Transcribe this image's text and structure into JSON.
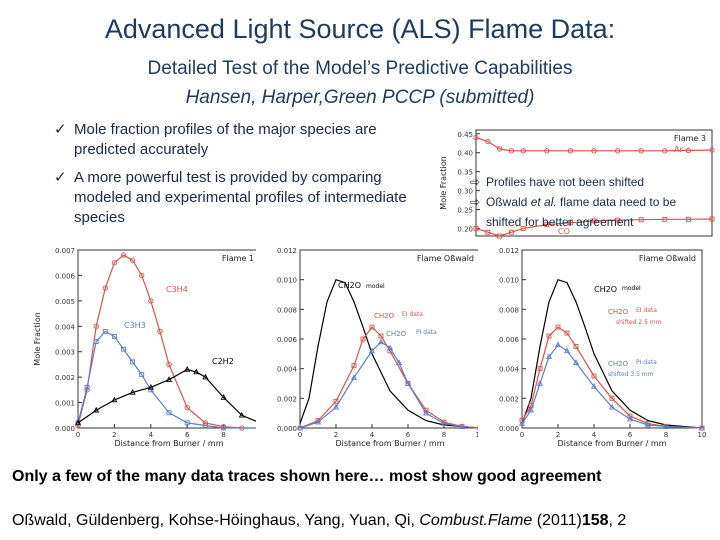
{
  "slide": {
    "title": "Advanced Light Source (ALS) Flame Data:",
    "subtitle": "Detailed Test of the Model’s Predictive Capabilities",
    "authors": "Hansen, Harper,Green PCCP (submitted)",
    "bullets": [
      "Mole fraction profiles of the major species are predicted accurately",
      "A more powerful test is provided by comparing modeled and experimental profiles of intermediate species"
    ],
    "note": {
      "line1": "Profiles have not been shifted",
      "line2_pre": "Oßwald ",
      "line2_italic": "et al.",
      "line2_post": " flame data need to be",
      "line3": "shifted for better agreement"
    },
    "summary": "Only a few of the many data traces shown here… most show good agreement",
    "citation": {
      "authors": "Oßwald, Güldenberg, Kohse-Höinghaus, Yang, Yuan, Qi, ",
      "journal": "Combust.Flame",
      "year": " (2011)",
      "volume": "158",
      "pages": ", 2"
    }
  },
  "colors": {
    "title": "#1f3a5c",
    "model": "#000000",
    "red_data": "#d9534f",
    "blue_data": "#5b7fc7",
    "ar_line": "#d9534f"
  },
  "chart_data": [
    {
      "type": "line",
      "title": "Flame 3",
      "ylabel": "Mole Fraction",
      "yticks": [
        "0.45",
        "0.40",
        "0.35",
        "0.30",
        "0.25",
        "0.20"
      ],
      "ylim": [
        0.18,
        0.46
      ],
      "xlim": [
        0,
        10
      ],
      "series": [
        {
          "name": "Ar",
          "color": "#d9534f",
          "x": [
            0,
            0.5,
            1,
            1.5,
            2,
            3,
            4,
            5,
            6,
            7,
            8,
            9,
            10
          ],
          "y": [
            0.44,
            0.43,
            0.41,
            0.405,
            0.405,
            0.405,
            0.405,
            0.405,
            0.405,
            0.405,
            0.405,
            0.406,
            0.407
          ]
        },
        {
          "name": "CO",
          "color": "#d9534f",
          "x": [
            0,
            0.5,
            1,
            1.5,
            2,
            3,
            4,
            5,
            6,
            7,
            8,
            9,
            10
          ],
          "y": [
            0.2,
            0.19,
            0.18,
            0.19,
            0.2,
            0.21,
            0.215,
            0.22,
            0.222,
            0.223,
            0.224,
            0.224,
            0.225
          ]
        }
      ]
    },
    {
      "type": "line",
      "title": "Flame 1",
      "xlabel": "Distance from Burner / mm",
      "ylabel": "Mole Fraction",
      "xlim": [
        0,
        10
      ],
      "ylim": [
        0,
        0.007
      ],
      "xticks": [
        "0",
        "2",
        "4",
        "6",
        "8",
        "10"
      ],
      "yticks": [
        "0.000",
        "0.001",
        "0.002",
        "0.003",
        "0.004",
        "0.005",
        "0.006",
        "0.007"
      ],
      "series": [
        {
          "name": "C3H4",
          "color": "#d9534f",
          "x": [
            0,
            0.5,
            1,
            1.5,
            2,
            2.5,
            3,
            3.5,
            4,
            4.5,
            5,
            6,
            7,
            8,
            9,
            10
          ],
          "y": [
            0.0001,
            0.0015,
            0.004,
            0.0055,
            0.0065,
            0.0068,
            0.0066,
            0.006,
            0.005,
            0.0038,
            0.0025,
            0.0008,
            0.0002,
            5e-05,
            0,
            0
          ]
        },
        {
          "name": "C3H3",
          "color": "#5b7fc7",
          "x": [
            0,
            0.5,
            1,
            1.5,
            2,
            2.5,
            3,
            3.5,
            4,
            5,
            6,
            7,
            8,
            10
          ],
          "y": [
            0.0002,
            0.0016,
            0.0034,
            0.0038,
            0.0036,
            0.0031,
            0.0026,
            0.0021,
            0.0015,
            0.0006,
            0.0002,
            0.0001,
            0,
            0
          ]
        },
        {
          "name": "C2H2",
          "color": "#000000",
          "x": [
            0,
            1,
            2,
            3,
            4,
            5,
            6,
            6.5,
            7,
            8,
            9,
            10
          ],
          "y": [
            0.0002,
            0.0007,
            0.0011,
            0.0014,
            0.0016,
            0.0019,
            0.0023,
            0.0022,
            0.002,
            0.0012,
            0.0005,
            0.0002
          ]
        }
      ]
    },
    {
      "type": "line",
      "title": "Flame Oßwald",
      "xlabel": "Distance from Burner / mm",
      "xlim": [
        0,
        10
      ],
      "ylim": [
        0,
        0.012
      ],
      "xticks": [
        "0",
        "2",
        "4",
        "6",
        "8",
        "10"
      ],
      "yticks": [
        "0.000",
        "0.002",
        "0.004",
        "0.006",
        "0.008",
        "0.010",
        "0.012"
      ],
      "series": [
        {
          "name": "CH2O model",
          "color": "#000000",
          "x": [
            0,
            0.5,
            1,
            1.5,
            2,
            2.5,
            3,
            3.5,
            4,
            5,
            6,
            7,
            8,
            9,
            10
          ],
          "y": [
            0.0003,
            0.002,
            0.0055,
            0.0085,
            0.01,
            0.0098,
            0.0085,
            0.0068,
            0.005,
            0.0025,
            0.0012,
            0.0005,
            0.0002,
            0.0001,
            0
          ]
        },
        {
          "name": "CH2O EI data",
          "color": "#d9534f",
          "x": [
            0,
            1,
            2,
            3,
            3.5,
            4,
            4.5,
            5,
            6,
            7,
            8,
            9,
            10
          ],
          "y": [
            0,
            0.0005,
            0.0018,
            0.0042,
            0.006,
            0.0068,
            0.0062,
            0.0052,
            0.003,
            0.0012,
            0.0004,
            0.0001,
            0
          ]
        },
        {
          "name": "CH2O PI data",
          "color": "#5b7fc7",
          "x": [
            0,
            1,
            2,
            3,
            4,
            4.5,
            5,
            5.5,
            6,
            7,
            8,
            9,
            10
          ],
          "y": [
            0,
            0.0004,
            0.0014,
            0.0034,
            0.0052,
            0.0058,
            0.0054,
            0.0044,
            0.003,
            0.001,
            0.0003,
            0.0001,
            0
          ]
        }
      ]
    },
    {
      "type": "line",
      "title": "Flame Oßwald",
      "xlabel": "Distance from Burner / mm",
      "xlim": [
        0,
        10
      ],
      "ylim": [
        0,
        0.012
      ],
      "xticks": [
        "0",
        "2",
        "4",
        "6",
        "8",
        "10"
      ],
      "yticks": [
        "0.000",
        "0.002",
        "0.004",
        "0.006",
        "0.008",
        "0.010",
        "0.012"
      ],
      "annotations": [
        "shifted 2.5 mm",
        "shifted 3.5 mm"
      ],
      "series": [
        {
          "name": "CH2O model",
          "color": "#000000",
          "x": [
            0,
            0.5,
            1,
            1.5,
            2,
            2.5,
            3,
            3.5,
            4,
            5,
            6,
            7,
            8,
            9,
            10
          ],
          "y": [
            0.0003,
            0.002,
            0.0055,
            0.0085,
            0.01,
            0.0098,
            0.0085,
            0.0068,
            0.005,
            0.0025,
            0.0012,
            0.0005,
            0.0002,
            0.0001,
            0
          ]
        },
        {
          "name": "CH2O EI data",
          "color": "#d9534f",
          "x": [
            0,
            0.5,
            1,
            1.5,
            2,
            2.5,
            3,
            4,
            5,
            6,
            7,
            8,
            10
          ],
          "y": [
            0.0005,
            0.0015,
            0.004,
            0.0062,
            0.0068,
            0.0064,
            0.0055,
            0.0035,
            0.002,
            0.0008,
            0.0003,
            0.0001,
            0
          ]
        },
        {
          "name": "CH2O PI data",
          "color": "#5b7fc7",
          "x": [
            0,
            0.5,
            1,
            1.5,
            2,
            2.5,
            3,
            4,
            5,
            6,
            7,
            8,
            10
          ],
          "y": [
            0.0003,
            0.0012,
            0.003,
            0.0048,
            0.0056,
            0.0052,
            0.0044,
            0.0028,
            0.0014,
            0.0006,
            0.0002,
            0.0001,
            0
          ]
        }
      ]
    }
  ]
}
